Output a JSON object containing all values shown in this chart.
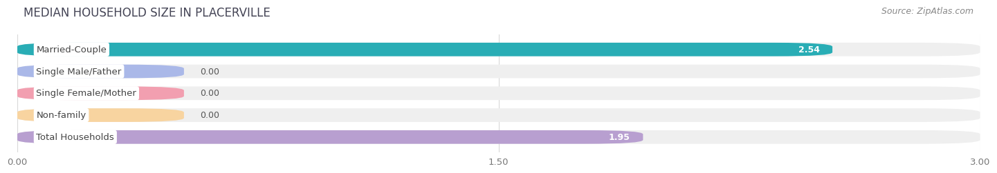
{
  "title": "MEDIAN HOUSEHOLD SIZE IN PLACERVILLE",
  "source": "Source: ZipAtlas.com",
  "categories": [
    "Married-Couple",
    "Single Male/Father",
    "Single Female/Mother",
    "Non-family",
    "Total Households"
  ],
  "values": [
    2.54,
    0.0,
    0.0,
    0.0,
    1.95
  ],
  "bar_colors": [
    "#29adb5",
    "#aab8e8",
    "#f29fb0",
    "#f8d4a0",
    "#b89fd0"
  ],
  "bar_bg_color": "#efefef",
  "bar_shadow_color": "#e0e0e0",
  "xlim": [
    0,
    3.0
  ],
  "xticks": [
    0.0,
    1.5,
    3.0
  ],
  "xtick_labels": [
    "0.00",
    "1.50",
    "3.00"
  ],
  "title_fontsize": 12,
  "source_fontsize": 9,
  "label_fontsize": 9.5,
  "value_fontsize": 9,
  "background_color": "#ffffff",
  "grid_color": "#d8d8d8",
  "zero_bar_width": 0.52
}
